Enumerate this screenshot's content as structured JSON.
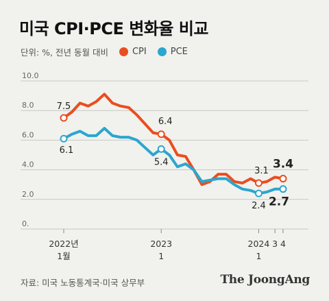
{
  "title": "미국 CPI·PCE 변화율 비교",
  "unit_text": "단위: %, 전년 동월 대비",
  "source": "자료: 미국 노동통계국·미국 상무부",
  "logo": "The JoongAng",
  "colors": {
    "cpi": "#ea4d1e",
    "pce": "#2aa6cf",
    "grid": "#c7c7c3",
    "background": "#f1f1ee"
  },
  "chart_data": {
    "type": "line",
    "title": "미국 CPI·PCE 변화율 비교",
    "ylabel": "단위: %, 전년 동월 대비",
    "xlabel": "",
    "ylim": [
      0,
      10
    ],
    "y_ticks": [
      "10.0",
      "8.0",
      "6.0",
      "4.0",
      "2.0",
      "0."
    ],
    "y_tick_values": [
      10,
      8,
      6,
      4,
      2,
      0
    ],
    "x_ticks": [
      {
        "line1": "2022년",
        "line2": "1월",
        "x": "2022-01"
      },
      {
        "line1": "2023",
        "line2": "1",
        "x": "2023-01"
      },
      {
        "line1": "2024",
        "line2": "1",
        "x": "2024-01"
      },
      {
        "line1": "3",
        "line2": "",
        "x": "2024-03"
      },
      {
        "line1": "4",
        "line2": "",
        "x": "2024-04"
      }
    ],
    "x": [
      "2022-01",
      "2022-02",
      "2022-03",
      "2022-04",
      "2022-05",
      "2022-06",
      "2022-07",
      "2022-08",
      "2022-09",
      "2022-10",
      "2022-11",
      "2022-12",
      "2023-01",
      "2023-02",
      "2023-03",
      "2023-04",
      "2023-05",
      "2023-06",
      "2023-07",
      "2023-08",
      "2023-09",
      "2023-10",
      "2023-11",
      "2023-12",
      "2024-01",
      "2024-02",
      "2024-03",
      "2024-04"
    ],
    "series": [
      {
        "name": "CPI",
        "values": [
          7.5,
          7.9,
          8.5,
          8.3,
          8.6,
          9.1,
          8.5,
          8.3,
          8.2,
          7.7,
          7.1,
          6.5,
          6.4,
          6.0,
          5.0,
          4.9,
          4.0,
          3.0,
          3.2,
          3.7,
          3.7,
          3.2,
          3.1,
          3.4,
          3.1,
          3.2,
          3.5,
          3.4
        ],
        "point_labels": [
          {
            "x": "2022-01",
            "text": "7.5",
            "emphasis": false
          },
          {
            "x": "2023-01",
            "text": "6.4",
            "emphasis": false
          },
          {
            "x": "2024-01",
            "text": "3.1",
            "emphasis": false
          },
          {
            "x": "2024-04",
            "text": "3.4",
            "emphasis": true
          }
        ]
      },
      {
        "name": "PCE",
        "values": [
          6.1,
          6.4,
          6.6,
          6.3,
          6.3,
          6.8,
          6.3,
          6.2,
          6.2,
          6.0,
          5.5,
          5.0,
          5.4,
          5.0,
          4.2,
          4.4,
          4.0,
          3.2,
          3.3,
          3.4,
          3.4,
          3.0,
          2.7,
          2.6,
          2.4,
          2.5,
          2.7,
          2.7
        ],
        "point_labels": [
          {
            "x": "2022-01",
            "text": "6.1",
            "emphasis": false
          },
          {
            "x": "2023-01",
            "text": "5.4",
            "emphasis": false
          },
          {
            "x": "2024-01",
            "text": "2.4",
            "emphasis": false
          },
          {
            "x": "2024-04",
            "text": "2.7",
            "emphasis": true
          }
        ]
      }
    ],
    "grid": true,
    "legend_position": "top"
  }
}
